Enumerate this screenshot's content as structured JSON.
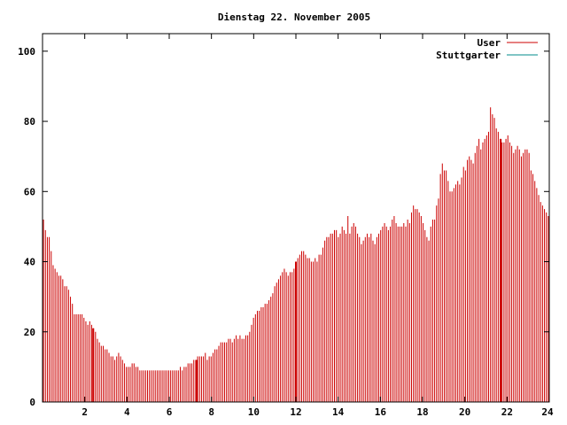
{
  "chart_data": {
    "type": "bar",
    "title": "Dienstag 22. November 2005",
    "xlabel": "",
    "ylabel": "",
    "xlim": [
      0,
      24
    ],
    "ylim": [
      0,
      105
    ],
    "x_ticks": [
      "2",
      "4",
      "6",
      "8",
      "10",
      "12",
      "14",
      "16",
      "18",
      "20",
      "22",
      "24"
    ],
    "y_ticks": [
      "0",
      "20",
      "40",
      "60",
      "80",
      "100"
    ],
    "grid": false,
    "legend_position": "top-right",
    "series": [
      {
        "name": "User",
        "color": "#cc0000",
        "values": [
          52,
          49,
          47,
          47,
          43,
          39,
          38,
          37,
          36,
          36,
          35,
          33,
          33,
          32,
          30,
          28,
          25,
          25,
          25,
          25,
          25,
          24,
          23,
          22,
          23,
          22,
          21,
          20,
          18,
          17,
          16,
          16,
          15,
          15,
          14,
          13,
          13,
          12,
          13,
          14,
          13,
          12,
          11,
          10,
          10,
          10,
          11,
          11,
          10,
          10,
          9,
          9,
          9,
          9,
          9,
          9,
          9,
          9,
          9,
          9,
          9,
          9,
          9,
          9,
          9,
          9,
          9,
          9,
          9,
          9,
          9,
          10,
          9,
          10,
          10,
          11,
          11,
          11,
          12,
          12,
          13,
          13,
          13,
          13,
          14,
          12,
          13,
          13,
          14,
          15,
          15,
          16,
          17,
          17,
          17,
          17,
          18,
          18,
          17,
          18,
          19,
          18,
          19,
          18,
          18,
          19,
          19,
          20,
          22,
          24,
          25,
          26,
          26,
          27,
          27,
          28,
          28,
          29,
          30,
          31,
          33,
          34,
          35,
          36,
          37,
          38,
          37,
          36,
          37,
          37,
          38,
          40,
          41,
          42,
          43,
          43,
          42,
          41,
          41,
          40,
          40,
          41,
          40,
          42,
          42,
          44,
          46,
          47,
          47,
          48,
          48,
          49,
          49,
          47,
          48,
          50,
          49,
          48,
          53,
          48,
          50,
          51,
          50,
          48,
          47,
          45,
          46,
          47,
          48,
          47,
          48,
          46,
          45,
          47,
          48,
          49,
          50,
          51,
          50,
          49,
          50,
          52,
          53,
          51,
          50,
          50,
          50,
          51,
          50,
          52,
          51,
          54,
          56,
          55,
          55,
          54,
          53,
          51,
          49,
          47,
          46,
          50,
          52,
          52,
          56,
          58,
          65,
          68,
          66,
          66,
          63,
          60,
          60,
          61,
          62,
          63,
          62,
          64,
          67,
          66,
          69,
          70,
          69,
          68,
          71,
          73,
          75,
          72,
          74,
          75,
          76,
          77,
          84,
          82,
          81,
          78,
          77,
          75,
          74,
          74,
          75,
          76,
          74,
          73,
          71,
          72,
          73,
          72,
          70,
          71,
          72,
          72,
          71,
          66,
          65,
          63,
          61,
          59,
          57,
          56,
          55,
          54,
          53
        ]
      },
      {
        "name": "Stuttgarter",
        "color": "#008b8b",
        "values": []
      }
    ],
    "highlight_hours": [
      2.4,
      7.3,
      12.0,
      21.7
    ]
  }
}
